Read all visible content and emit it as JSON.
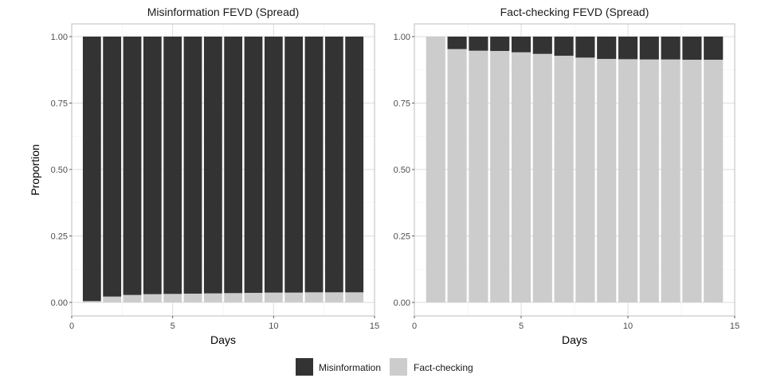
{
  "chart_data": [
    {
      "type": "bar",
      "stacked": true,
      "title": "Misinformation FEVD (Spread)",
      "xlabel": "Days",
      "ylabel": "Proportion",
      "x": [
        1,
        2,
        3,
        4,
        5,
        6,
        7,
        8,
        9,
        10,
        11,
        12,
        13,
        14
      ],
      "xlim": [
        0,
        15
      ],
      "xticks": [
        0,
        5,
        10,
        15
      ],
      "ylim": [
        0,
        1
      ],
      "yticks": [
        "0.00",
        "0.25",
        "0.50",
        "0.75",
        "1.00"
      ],
      "grid": true,
      "series": [
        {
          "name": "Fact-checking",
          "values": [
            0.005,
            0.022,
            0.028,
            0.031,
            0.032,
            0.033,
            0.034,
            0.035,
            0.036,
            0.037,
            0.037,
            0.038,
            0.038,
            0.038
          ]
        },
        {
          "name": "Misinformation",
          "values": [
            0.995,
            0.978,
            0.972,
            0.969,
            0.968,
            0.967,
            0.966,
            0.965,
            0.964,
            0.963,
            0.963,
            0.962,
            0.962,
            0.962
          ]
        }
      ]
    },
    {
      "type": "bar",
      "stacked": true,
      "title": "Fact-checking FEVD (Spread)",
      "xlabel": "Days",
      "ylabel": "",
      "x": [
        1,
        2,
        3,
        4,
        5,
        6,
        7,
        8,
        9,
        10,
        11,
        12,
        13,
        14
      ],
      "xlim": [
        0,
        15
      ],
      "xticks": [
        0,
        5,
        10,
        15
      ],
      "ylim": [
        0,
        1
      ],
      "yticks": [
        "0.00",
        "0.25",
        "0.50",
        "0.75",
        "1.00"
      ],
      "grid": true,
      "series": [
        {
          "name": "Fact-checking",
          "values": [
            1.0,
            0.953,
            0.947,
            0.946,
            0.941,
            0.935,
            0.928,
            0.921,
            0.916,
            0.915,
            0.914,
            0.914,
            0.913,
            0.913
          ]
        },
        {
          "name": "Misinformation",
          "values": [
            0.0,
            0.047,
            0.053,
            0.054,
            0.059,
            0.065,
            0.072,
            0.079,
            0.084,
            0.085,
            0.086,
            0.086,
            0.087,
            0.087
          ]
        }
      ]
    }
  ],
  "legend": {
    "placement": "bottom",
    "items": [
      {
        "label": "Misinformation",
        "color": "#333333"
      },
      {
        "label": "Fact-checking",
        "color": "#cccccc"
      }
    ]
  },
  "colors": {
    "Misinformation": "#333333",
    "Fact-checking": "#cccccc"
  }
}
